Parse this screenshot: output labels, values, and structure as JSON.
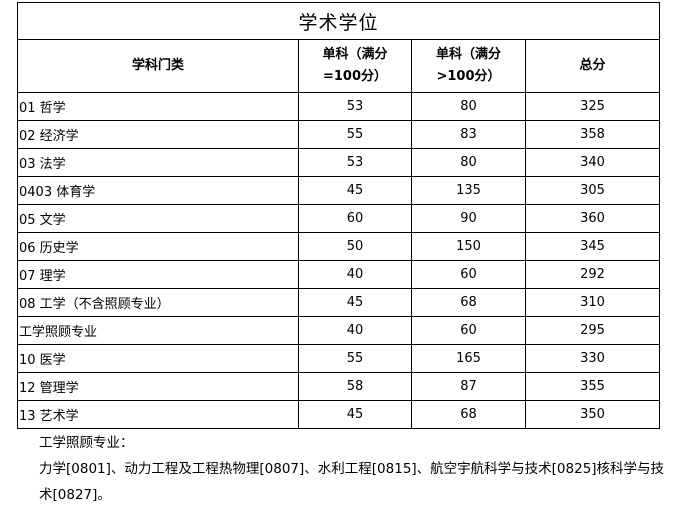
{
  "title": "学术学位",
  "headers": {
    "category": "学科门类",
    "single_100_line1": "单科（满分",
    "single_100_line2": "=100分）",
    "single_gt100_line1": "单科（满分",
    "single_gt100_line2": ">100分）",
    "total": "总分"
  },
  "rows": [
    {
      "subject": "01 哲学",
      "s100": "53",
      "sgt100": "80",
      "total": "325"
    },
    {
      "subject": "02 经济学",
      "s100": "55",
      "sgt100": "83",
      "total": "358"
    },
    {
      "subject": "03 法学",
      "s100": "53",
      "sgt100": "80",
      "total": "340"
    },
    {
      "subject": "0403 体育学",
      "s100": "45",
      "sgt100": "135",
      "total": "305"
    },
    {
      "subject": "05 文学",
      "s100": "60",
      "sgt100": "90",
      "total": "360"
    },
    {
      "subject": "06 历史学",
      "s100": "50",
      "sgt100": "150",
      "total": "345"
    },
    {
      "subject": "07 理学",
      "s100": "40",
      "sgt100": "60",
      "total": "292"
    },
    {
      "subject": "08 工学（不含照顾专业）",
      "s100": "45",
      "sgt100": "68",
      "total": "310"
    },
    {
      "subject": "工学照顾专业",
      "s100": "40",
      "sgt100": "60",
      "total": "295"
    },
    {
      "subject": "10 医学",
      "s100": "55",
      "sgt100": "165",
      "total": "330"
    },
    {
      "subject": "12 管理学",
      "s100": "58",
      "sgt100": "87",
      "total": "355"
    },
    {
      "subject": "13 艺术学",
      "s100": "45",
      "sgt100": "68",
      "total": "350"
    }
  ],
  "notes": {
    "title": "工学照顾专业：",
    "body": "力学[0801]、动力工程及工程热物理[0807]、水利工程[0815]、航空宇航科学与技术[0825]核科学与技术[0827]。"
  }
}
